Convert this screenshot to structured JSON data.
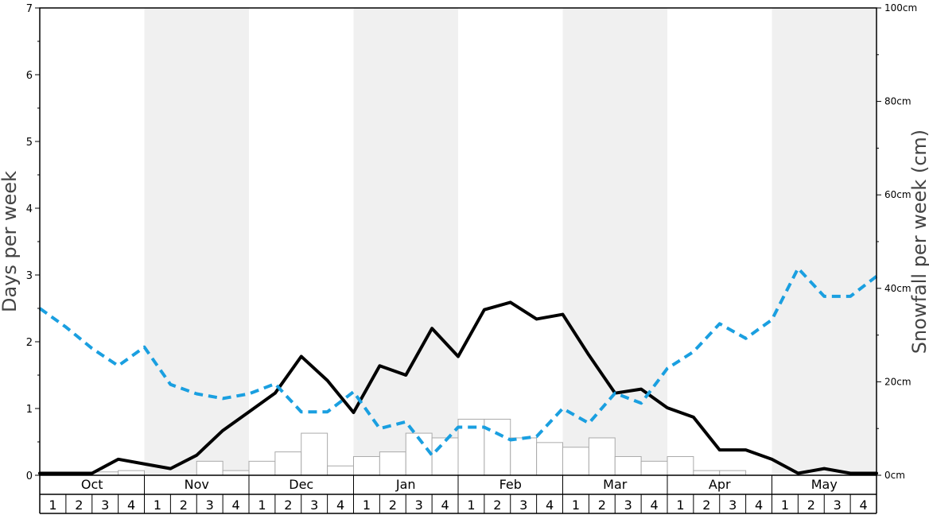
{
  "chart_data": {
    "type": "bar",
    "months": [
      "Oct",
      "Nov",
      "Dec",
      "Jan",
      "Feb",
      "Mar",
      "Apr",
      "May"
    ],
    "weeks": [
      "1",
      "2",
      "3",
      "4"
    ],
    "ylabel_left": "Days per week",
    "ylabel_right": "Snowfall per week (cm)",
    "ylim_left": [
      0,
      7
    ],
    "ylim_right": [
      0,
      100
    ],
    "left_ticks": [
      "0",
      "1",
      "2",
      "3",
      "4",
      "5",
      "6",
      "7"
    ],
    "right_ticks": [
      "0cm",
      "20cm",
      "40cm",
      "60cm",
      "80cm",
      "100cm"
    ],
    "shaded_months": [
      "Nov",
      "Jan",
      "Mar",
      "May"
    ],
    "colors": {
      "shade": "#f0f0f0",
      "bar_fill": "#ffffff",
      "bar_stroke": "#aaaaaa",
      "solid_line": "#000000",
      "dashed_line": "#1a9fe0"
    },
    "series": [
      {
        "type": "bar",
        "axis": "left",
        "values": [
          0,
          0,
          0.05,
          0.07,
          0,
          0,
          0.21,
          0.07,
          0.21,
          0.35,
          0.63,
          0.14,
          0.28,
          0.35,
          0.63,
          0.56,
          0.84,
          0.84,
          0.56,
          0.49,
          0.42,
          0.56,
          0.28,
          0.21,
          0.28,
          0.07,
          0.07,
          0,
          0,
          0,
          0,
          0
        ]
      },
      {
        "type": "line",
        "style": "solid",
        "axis": "left",
        "values": [
          0.03,
          0.03,
          0.03,
          0.24,
          0.17,
          0.1,
          0.3,
          0.67,
          0.95,
          1.23,
          1.78,
          1.42,
          0.94,
          1.64,
          1.5,
          2.2,
          1.78,
          2.48,
          2.59,
          2.34,
          2.41,
          1.8,
          1.23,
          1.29,
          1.01,
          0.87,
          0.38,
          0.38,
          0.24,
          0.03,
          0.1,
          0.03,
          0.03
        ]
      },
      {
        "type": "line",
        "style": "dashed",
        "axis": "left",
        "values": [
          2.5,
          2.22,
          1.9,
          1.64,
          1.92,
          1.36,
          1.22,
          1.15,
          1.22,
          1.37,
          0.95,
          0.95,
          1.25,
          0.7,
          0.8,
          0.3,
          0.72,
          0.72,
          0.53,
          0.58,
          1.0,
          0.78,
          1.23,
          1.08,
          1.6,
          1.85,
          2.27,
          2.05,
          2.33,
          3.1,
          2.68,
          2.68,
          2.98
        ]
      }
    ]
  }
}
